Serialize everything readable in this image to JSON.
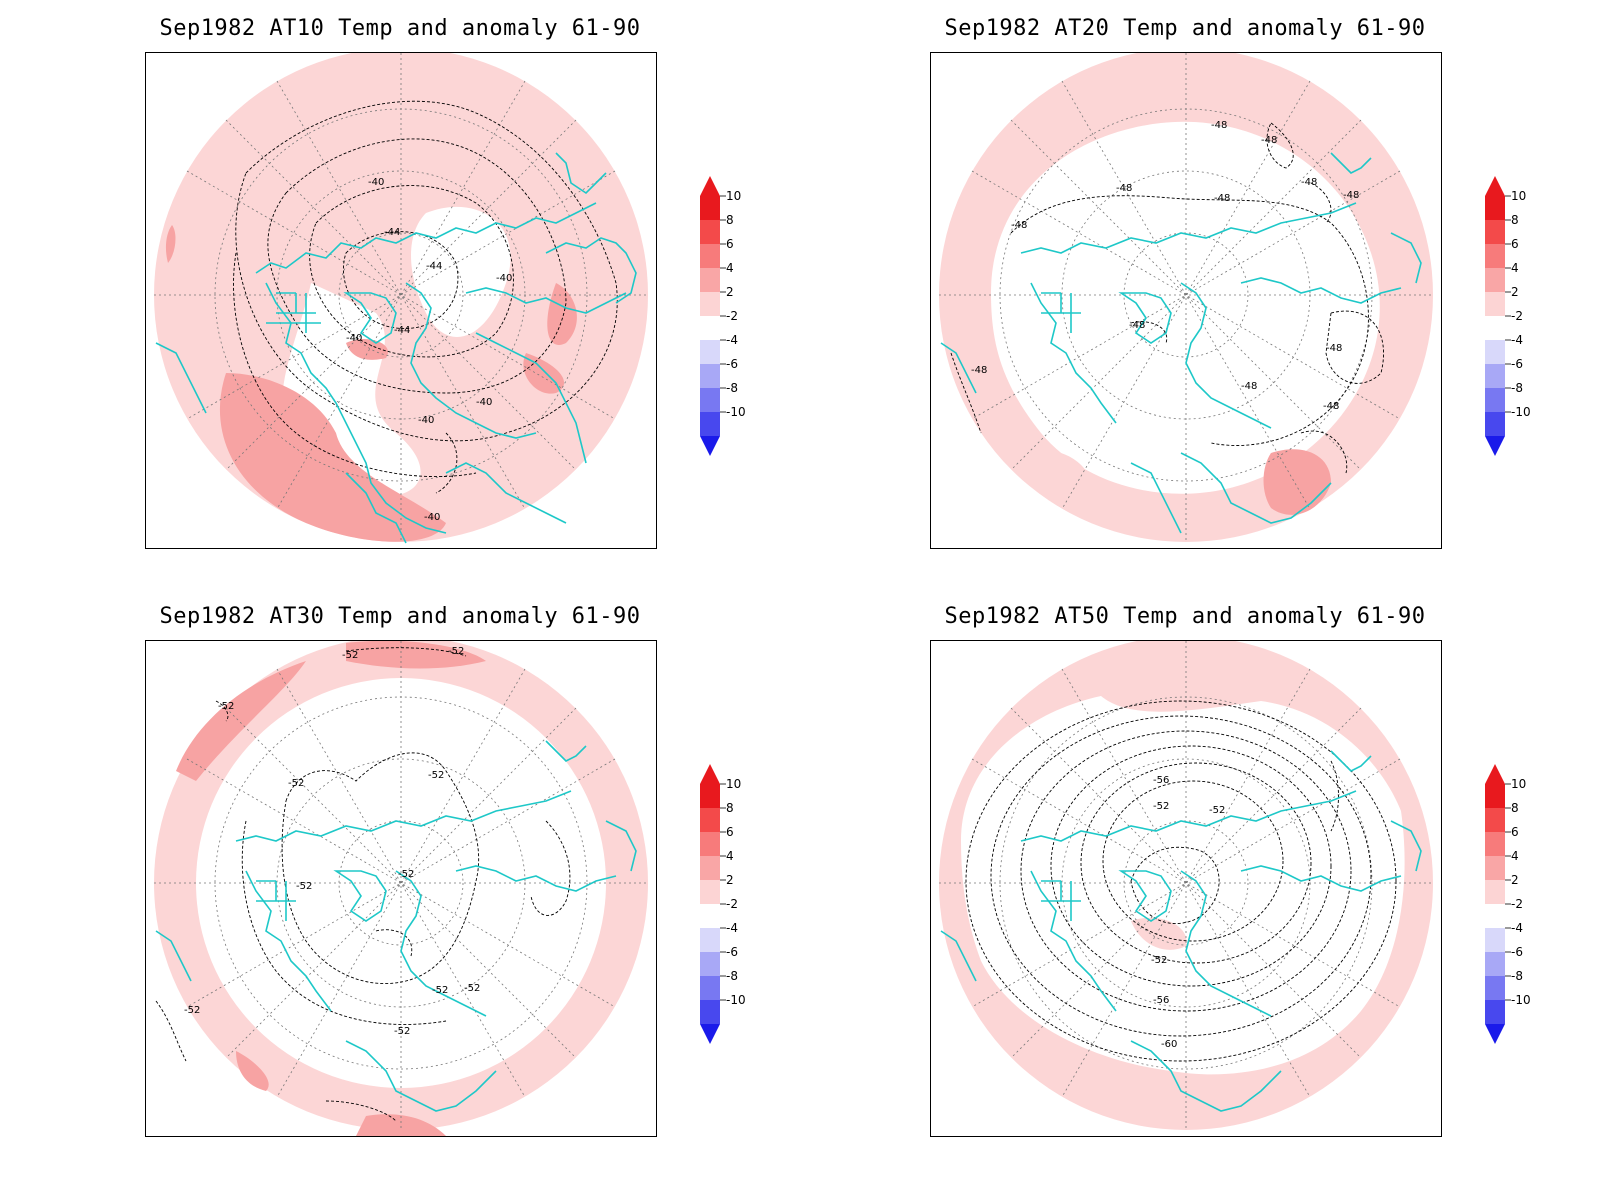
{
  "panels": [
    {
      "title": "Sep1982 AT10 Temp and anomaly 61-90",
      "contour_labels": [
        "-40",
        "-44",
        "-44",
        "-40",
        "-40",
        "-44",
        "-40",
        "-40",
        "-40"
      ]
    },
    {
      "title": "Sep1982 AT20 Temp and anomaly 61-90",
      "contour_labels": [
        "-48",
        "-48",
        "-48",
        "-48",
        "-48",
        "-48",
        "-48",
        "-48",
        "-48",
        "-48",
        "-48",
        "-48"
      ]
    },
    {
      "title": "Sep1982 AT30 Temp and anomaly 61-90",
      "contour_labels": [
        "-52",
        "-52",
        "-52",
        "-52",
        "-52",
        "-52",
        "-52",
        "-52",
        "-52",
        "-52",
        "-52"
      ]
    },
    {
      "title": "Sep1982 AT50 Temp and anomaly 61-90",
      "contour_labels": [
        "-56",
        "-52",
        "-52",
        "-52",
        "-56",
        "-60"
      ]
    }
  ],
  "colorbar": {
    "labels": [
      "10",
      "8",
      "6",
      "4",
      "2",
      "-2",
      "-4",
      "-6",
      "-8",
      "-10"
    ],
    "colors": [
      "#e8191e",
      "#f34a4a",
      "#f77b7b",
      "#f9a6a6",
      "#fcd4d4",
      "#ffffff",
      "#d8d8fa",
      "#a8a8f6",
      "#7878f2",
      "#4848ee",
      "#1a1aea"
    ],
    "top_color": "#e8191e",
    "bottom_color": "#1a1aea"
  },
  "colors": {
    "coastline": "#1ec8c8",
    "anomaly_light": "#fcd6d6",
    "anomaly_mid": "#f7a3a3",
    "grid": "#777777",
    "contour": "#000000"
  }
}
